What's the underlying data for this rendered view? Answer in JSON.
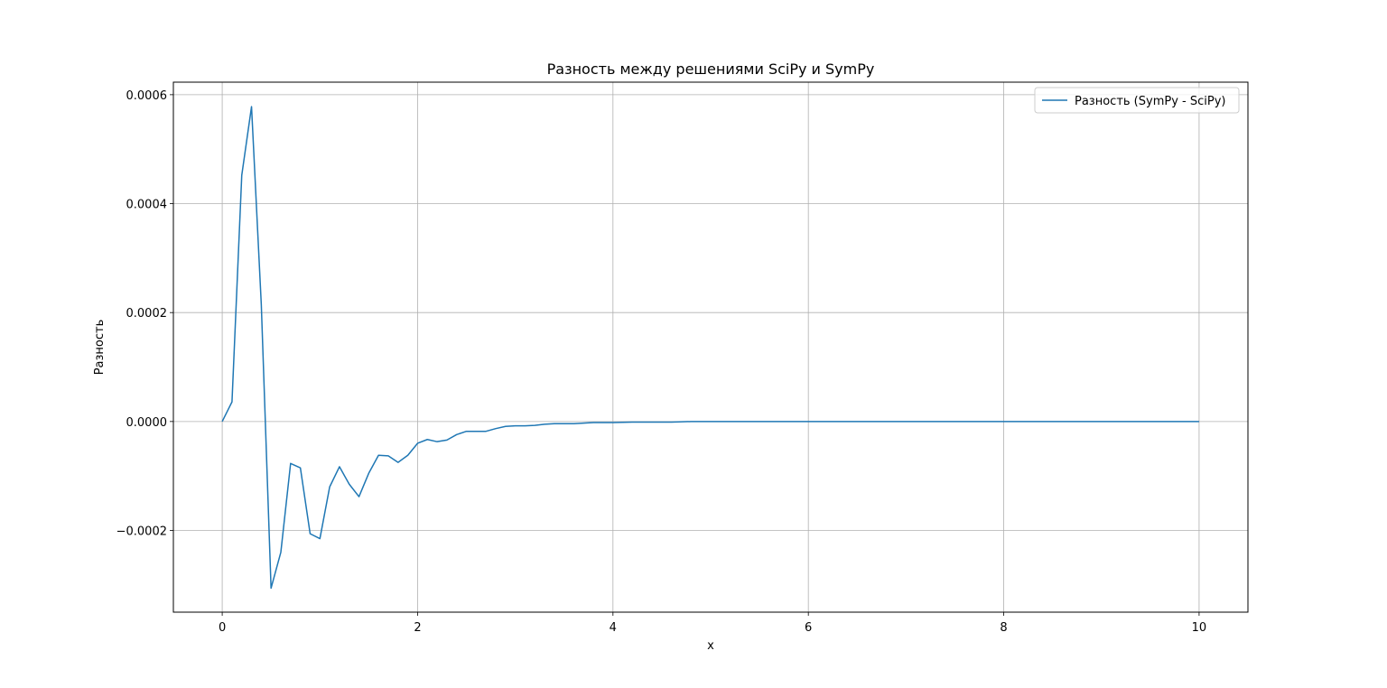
{
  "chart_data": {
    "type": "line",
    "title": "Разность между решениями SciPy и SymPy",
    "xlabel": "x",
    "ylabel": "Разность",
    "xlim": [
      -0.5,
      10.5
    ],
    "ylim": [
      -0.00035,
      0.000623
    ],
    "grid": true,
    "legend_position": "top-right",
    "xticks": [
      0,
      2,
      4,
      6,
      8,
      10
    ],
    "xtick_labels": [
      "0",
      "2",
      "4",
      "6",
      "8",
      "10"
    ],
    "yticks": [
      -0.0002,
      0.0,
      0.0002,
      0.0004,
      0.0006
    ],
    "ytick_labels": [
      "−0.0002",
      "0.0000",
      "0.0002",
      "0.0004",
      "0.0006"
    ],
    "series": [
      {
        "name": "Разность (SymPy - SciPy)",
        "color": "#1f77b4",
        "x": [
          0.0,
          0.1,
          0.2,
          0.3,
          0.4,
          0.5,
          0.6,
          0.7,
          0.8,
          0.9,
          1.0,
          1.1,
          1.2,
          1.3,
          1.4,
          1.5,
          1.6,
          1.7,
          1.8,
          1.9,
          2.0,
          2.1,
          2.2,
          2.3,
          2.4,
          2.5,
          2.6,
          2.7,
          2.8,
          2.9,
          3.0,
          3.1,
          3.2,
          3.3,
          3.4,
          3.5,
          3.6,
          3.7,
          3.8,
          3.9,
          4.0,
          4.2,
          4.4,
          4.6,
          4.8,
          5.0,
          5.5,
          6.0,
          6.5,
          7.0,
          7.5,
          8.0,
          8.5,
          9.0,
          9.5,
          10.0
        ],
        "y": [
          0.0,
          3.6e-05,
          0.000452,
          0.000578,
          0.000215,
          -0.000306,
          -0.00024,
          -7.7e-05,
          -8.5e-05,
          -0.000206,
          -0.000215,
          -0.00012,
          -8.3e-05,
          -0.000115,
          -0.000138,
          -9.5e-05,
          -6.2e-05,
          -6.3e-05,
          -7.5e-05,
          -6.2e-05,
          -4e-05,
          -3.3e-05,
          -3.7e-05,
          -3.4e-05,
          -2.4e-05,
          -1.8e-05,
          -1.8e-05,
          -1.8e-05,
          -1.3e-05,
          -9e-06,
          -8e-06,
          -8e-06,
          -7e-06,
          -5e-06,
          -4e-06,
          -4e-06,
          -4e-06,
          -3e-06,
          -2e-06,
          -2e-06,
          -2e-06,
          -1e-06,
          -1e-06,
          -1e-06,
          0.0,
          0.0,
          0.0,
          0.0,
          0.0,
          0.0,
          0.0,
          0.0,
          0.0,
          0.0,
          0.0,
          0.0
        ]
      }
    ]
  }
}
